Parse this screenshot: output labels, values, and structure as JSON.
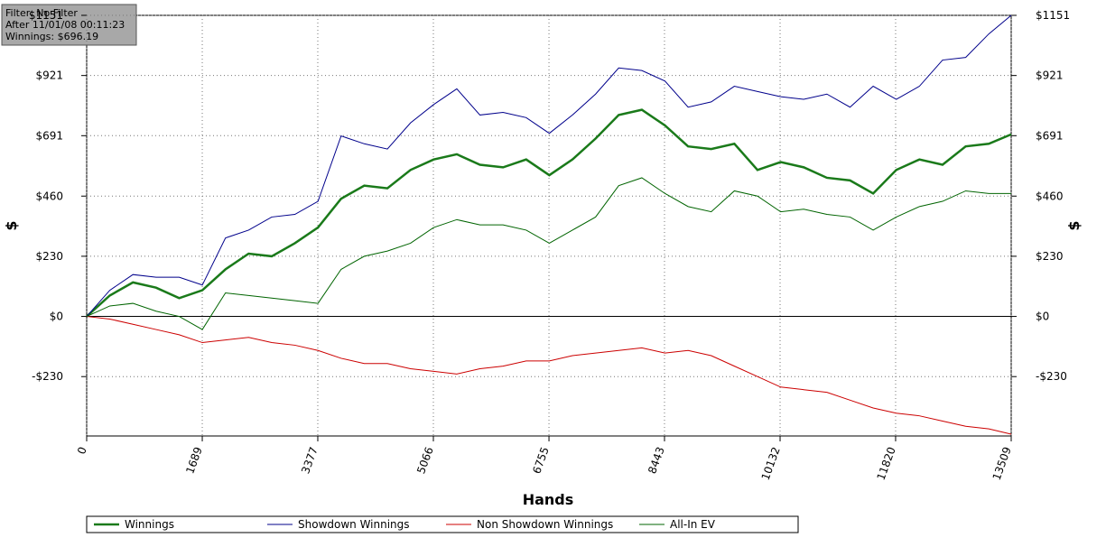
{
  "chart_data": {
    "type": "line",
    "info": [
      "Filter: No Filter",
      "After 11/01/08 00:11:23",
      "Winnings: $696.19"
    ],
    "xlabel": "Hands",
    "ylabel": "$",
    "x": [
      0,
      338,
      676,
      1014,
      1352,
      1690,
      2028,
      2366,
      2704,
      3042,
      3380,
      3718,
      4056,
      4394,
      4732,
      5070,
      5408,
      5746,
      6084,
      6422,
      6760,
      7098,
      7436,
      7774,
      8112,
      8450,
      8788,
      9126,
      9464,
      9802,
      10140,
      10478,
      10816,
      11154,
      11492,
      11830,
      12168,
      12506,
      12844,
      13182,
      13509
    ],
    "xlim": [
      0,
      13509
    ],
    "xticks": [
      0,
      1689,
      3377,
      5066,
      6755,
      8443,
      10132,
      11820,
      13509
    ],
    "ylim": [
      -457,
      1151
    ],
    "yticks": [
      {
        "value": -230,
        "label": "-$230"
      },
      {
        "value": 0,
        "label": "$0"
      },
      {
        "value": 230,
        "label": "$230"
      },
      {
        "value": 460,
        "label": "$460"
      },
      {
        "value": 691,
        "label": "$691"
      },
      {
        "value": 921,
        "label": "$921"
      },
      {
        "value": 1151,
        "label": "$1151"
      }
    ],
    "grid": true,
    "series": [
      {
        "name": "Winnings",
        "color": "#1a7a1a",
        "width": 2.5,
        "values": [
          0,
          80,
          130,
          110,
          70,
          100,
          180,
          240,
          230,
          280,
          340,
          450,
          500,
          490,
          560,
          600,
          620,
          580,
          570,
          600,
          540,
          600,
          680,
          770,
          790,
          730,
          650,
          640,
          660,
          560,
          590,
          570,
          530,
          520,
          470,
          560,
          600,
          580,
          650,
          660,
          696
        ]
      },
      {
        "name": "Showdown Winnings",
        "color": "#00008b",
        "width": 1,
        "values": [
          0,
          100,
          160,
          150,
          150,
          120,
          300,
          330,
          380,
          390,
          440,
          690,
          660,
          640,
          740,
          810,
          870,
          770,
          780,
          760,
          700,
          770,
          850,
          950,
          940,
          900,
          800,
          820,
          880,
          860,
          840,
          830,
          850,
          800,
          880,
          830,
          880,
          980,
          990,
          1080,
          1151
        ]
      },
      {
        "name": "Non Showdown Winnings",
        "color": "#cc0000",
        "width": 1,
        "values": [
          0,
          -10,
          -30,
          -50,
          -70,
          -100,
          -90,
          -80,
          -100,
          -110,
          -130,
          -160,
          -180,
          -180,
          -200,
          -210,
          -220,
          -200,
          -190,
          -170,
          -170,
          -150,
          -140,
          -130,
          -120,
          -140,
          -130,
          -150,
          -190,
          -230,
          -270,
          -280,
          -290,
          -320,
          -350,
          -370,
          -380,
          -400,
          -420,
          -430,
          -450
        ]
      },
      {
        "name": "All-In EV",
        "color": "#006400",
        "width": 1,
        "values": [
          0,
          40,
          50,
          20,
          0,
          -50,
          90,
          80,
          70,
          60,
          50,
          180,
          230,
          250,
          280,
          340,
          370,
          350,
          350,
          330,
          280,
          330,
          380,
          500,
          530,
          470,
          420,
          400,
          480,
          460,
          400,
          410,
          390,
          380,
          330,
          380,
          420,
          440,
          480,
          470,
          470
        ]
      }
    ]
  }
}
